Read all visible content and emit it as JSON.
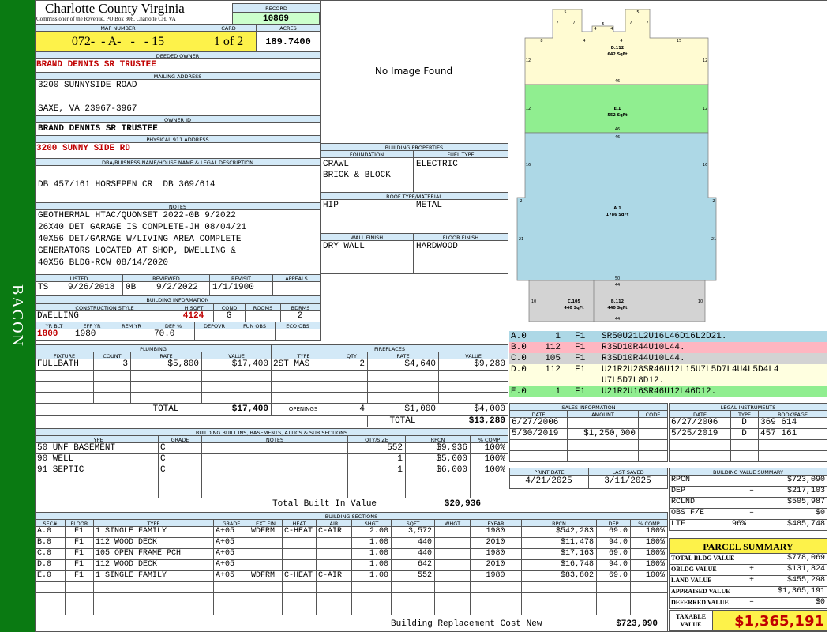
{
  "side_label": "BACON",
  "header": {
    "county": "Charlotte County Virginia",
    "office": "Commissioner of the Revenue, PO Box 308, Charlotte CH, VA",
    "record_label": "RECORD",
    "record": "10869",
    "map_number_label": "MAP NUMBER",
    "map_number": "072-  - A-   -   - 15",
    "card_label": "CARD",
    "card": "1 of 2",
    "acres_label": "ACRES",
    "acres": "189.7400"
  },
  "owner": {
    "deeded_owner_label": "DEEDED OWNER",
    "deeded_owner": "BRAND DENNIS SR TRUSTEE",
    "mailing_address_label": "MAILING ADDRESS",
    "mailing_address": [
      "3200 SUNNYSIDE ROAD",
      "SAXE, VA 23967-3967"
    ],
    "owner_id_label": "OWNER ID",
    "owner_id": "BRAND DENNIS SR TRUSTEE",
    "physical_address_label": "PHYSICAL 911 ADDRESS",
    "physical_address": "3200 SUNNY SIDE RD",
    "legal_label": "DBA/BUISNESS NAME/HOUSE NAME & LEGAL DESCRIPTION",
    "legal_description": "DB 457/161 HORSEPEN CR  DB 369/614",
    "notes_label": "NOTES",
    "notes": [
      "GEOTHERMAL HTAC/QUONSET 2022-0B 9/2022",
      "26X40 DET GARAGE IS COMPLETE-JH 08/04/21",
      "40X56 DET/GARAGE W/LIVING AREA COMPLETE",
      "GENERATORS LOCATED AT SHOP, DWELLING &",
      "40X56 BLDG-RCW 08/14/2020"
    ]
  },
  "review": {
    "headers": [
      "LISTED",
      "REVIEWED",
      "REVISIT",
      "APPEALS"
    ],
    "listed_by": "TS",
    "listed": "9/26/2018",
    "reviewed_by": "0B",
    "reviewed": "9/2/2022",
    "revisit": "1/1/1900"
  },
  "building_info": {
    "title": "BUILDING INFORMATION",
    "headers1": [
      "CONSTRUCTION STYLE",
      "H SQFT",
      "COND",
      "ROOMS",
      "BDRMS"
    ],
    "values1": [
      "DWELLING",
      "4124",
      "G",
      null,
      "2"
    ],
    "headers2": [
      "YR BLT",
      "EFF YR",
      "REM YR",
      "DEP %",
      "DEPOVR",
      "FUN OBS",
      "ECO OBS"
    ],
    "values2": [
      "1800",
      "1980",
      null,
      "70.0",
      null,
      null,
      null
    ]
  },
  "photo": {
    "text": "No Image Found"
  },
  "building_properties": {
    "title": "BUILDING PROPERTIES",
    "foundation_label": "FOUNDATION",
    "foundation": [
      "CRAWL",
      "BRICK & BLOCK"
    ],
    "fuel_label": "FUEL TYPE",
    "fuel": "ELECTRIC",
    "roof_label": "ROOF TYPE/MATERIAL",
    "roof_type": "HIP",
    "roof_material": "METAL",
    "wall_label": "WALL FINISH",
    "wall": "DRY WALL",
    "floor_label": "FLOOR FINISH",
    "floor": "HARDWOOD"
  },
  "sketch": {
    "areas": [
      {
        "label": "D.112",
        "sqft": "642 SqFt"
      },
      {
        "label": "E.1",
        "sqft": "552 SqFt"
      },
      {
        "label": "A.1",
        "sqft": "1786 SqFt"
      },
      {
        "label": "C.105",
        "sqft": "440 SqFt"
      },
      {
        "label": "B.112",
        "sqft": "440 SqFt"
      }
    ],
    "dimensions": [
      "5",
      "5",
      "7",
      "7",
      "7",
      "7",
      "4",
      "5",
      "4",
      "8",
      "4",
      "4",
      "15",
      "12",
      "12",
      "46",
      "12",
      "12",
      "46",
      "46",
      "16",
      "16",
      "2",
      "2",
      "21",
      "21",
      "50",
      "44",
      "10",
      "10",
      "44"
    ]
  },
  "sketch_codes": [
    {
      "code": "A.0",
      "area": "1",
      "floor": "F1",
      "vectors": [
        "SR50U21L2U16L46D16L2D21."
      ]
    },
    {
      "code": "B.0",
      "area": "112",
      "floor": "F1",
      "vectors": [
        "R3SD10R44U10L44."
      ]
    },
    {
      "code": "C.0",
      "area": "105",
      "floor": "F1",
      "vectors": [
        "R3SD10R44U10L44."
      ]
    },
    {
      "code": "D.0",
      "area": "112",
      "floor": "F1",
      "vectors": [
        "U21R2U28SR46U12L15U7L5D7L4U4L5D4L4",
        "U7L5D7L8D12."
      ]
    },
    {
      "code": "E.0",
      "area": "1",
      "floor": "F1",
      "vectors": [
        "U21R2U16SR46U12L46D12."
      ]
    }
  ],
  "plumbing": {
    "title": "PLUMBING",
    "headers": [
      "FIXTURE",
      "COUNT",
      "RATE",
      "VALUE"
    ],
    "rows": [
      [
        "FULLBATH",
        "3",
        "$5,800",
        "$17,400"
      ]
    ],
    "total_label": "TOTAL",
    "total": "$17,400"
  },
  "fireplaces": {
    "title": "FIREPLACES",
    "headers": [
      "TYPE",
      "QTY",
      "RATE",
      "VALUE"
    ],
    "rows": [
      [
        "2ST MAS",
        "2",
        "$4,640",
        "$9,280"
      ]
    ],
    "openings": [
      "OPENINGS",
      "4",
      "$1,000",
      "$4,000"
    ],
    "total_label": "TOTAL",
    "total": "$13,280"
  },
  "built_ins": {
    "title": "BUILDING BUILT INS, BASEMENTS, ATTICS & SUB SECTIONS",
    "headers": [
      "TYPE",
      "GRADE",
      "NOTES",
      "QTY/SIZE",
      "RPCN",
      "% COMP"
    ],
    "rows": [
      [
        "50 UNF BASEMENT",
        "C",
        null,
        "552",
        "$9,936",
        "100%"
      ],
      [
        "90 WELL",
        "C",
        null,
        "1",
        "$5,000",
        "100%"
      ],
      [
        "91 SEPTIC",
        "C",
        null,
        "1",
        "$6,000",
        "100%"
      ]
    ],
    "total_label": "Total Built In Value",
    "total": "$20,936"
  },
  "sections": {
    "title": "BUILDING SECTIONS",
    "headers": [
      "SEC#",
      "FLOOR",
      "TYPE",
      "GRADE",
      "EXT FIN",
      "HEAT",
      "AIR",
      "SHGT",
      "SQFT",
      "WHGT",
      "EYEAR",
      "RPCN",
      "DEP",
      "% COMP"
    ],
    "rows": [
      [
        "A.0",
        "F1",
        "1 SINGLE FAMILY",
        "A+05",
        "WDFRM",
        "C-HEAT",
        "C-AIR",
        "2.00",
        "3,572",
        null,
        "1980",
        "$542,283",
        "69.0",
        "100%"
      ],
      [
        "B.0",
        "F1",
        "112 WOOD DECK",
        "A+05",
        null,
        null,
        null,
        "1.00",
        "440",
        null,
        "2010",
        "$11,478",
        "94.0",
        "100%"
      ],
      [
        "C.0",
        "F1",
        "105 OPEN FRAME PCH",
        "A+05",
        null,
        null,
        null,
        "1.00",
        "440",
        null,
        "1980",
        "$17,163",
        "69.0",
        "100%"
      ],
      [
        "D.0",
        "F1",
        "112 WOOD DECK",
        "A+05",
        null,
        null,
        null,
        "1.00",
        "642",
        null,
        "2010",
        "$16,748",
        "94.0",
        "100%"
      ],
      [
        "E.0",
        "F1",
        "1 SINGLE FAMILY",
        "A+05",
        "WDFRM",
        "C-HEAT",
        "C-AIR",
        "1.00",
        "552",
        null,
        "1980",
        "$83,802",
        "69.0",
        "100%"
      ]
    ],
    "total_label": "Building Replacement Cost New",
    "total": "$723,090"
  },
  "sales": {
    "title": "SALES INFORMATION",
    "headers": [
      "DATE",
      "AMOUNT",
      "CODE"
    ],
    "rows": [
      [
        "6/27/2006",
        null,
        null
      ],
      [
        "5/30/2019",
        "$1,250,000",
        null
      ]
    ]
  },
  "legal": {
    "title": "LEGAL INSTRUMENTS",
    "headers": [
      "DATE",
      "TYPE",
      "BOOK/PAGE"
    ],
    "rows": [
      [
        "6/27/2006",
        "D",
        "369 614"
      ],
      [
        "5/25/2019",
        "D",
        "457 161"
      ]
    ]
  },
  "dates": {
    "print_label": "PRINT DATE",
    "print_date": "4/21/2025",
    "saved_label": "LAST SAVED",
    "last_saved": "3/11/2025"
  },
  "value_summary": {
    "title": "BUILDING VALUE SUMMARY",
    "rows": [
      [
        "RPCN",
        null,
        "$723,090"
      ],
      [
        "DEP",
        "–",
        "$217,103"
      ],
      [
        "RCLND",
        null,
        "$505,987"
      ],
      [
        "OBS F/E",
        "–",
        "$0"
      ],
      [
        "LTF",
        "96%",
        "$485,748"
      ]
    ]
  },
  "parcel_summary": {
    "title": "PARCEL SUMMARY",
    "rows": [
      [
        "TOTAL BLDG VALUE",
        null,
        "$778,069"
      ],
      [
        "OBLDG VALUE",
        "+",
        "$131,824"
      ],
      [
        "LAND VALUE",
        "+",
        "$455,298"
      ],
      [
        "APPRAISED VALUE",
        null,
        "$1,365,191"
      ],
      [
        "DEFERRED VALUE",
        "–",
        "$0"
      ]
    ],
    "taxable_label": "TAXABLE VALUE",
    "taxable": "$1,365,191"
  }
}
